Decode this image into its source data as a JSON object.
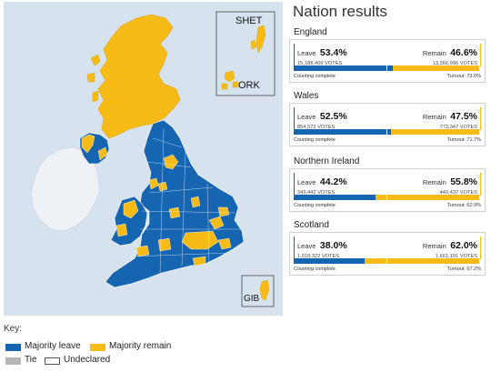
{
  "title": "Nation results",
  "map": {
    "insets": {
      "shetland_orkney": {
        "labels": [
          "SHET",
          "ORK"
        ]
      },
      "gibraltar": {
        "label": "GIB"
      }
    }
  },
  "colors": {
    "leave": "#1565b0",
    "remain": "#f6bb17",
    "tie": "#b5b5b5",
    "undeclared": "#ffffff",
    "sea": "#d6e3ee",
    "ireland": "#eef2f6"
  },
  "nations": [
    {
      "name": "England",
      "leave": {
        "label": "Leave",
        "pct": "53.4%",
        "votes": "15,188,406 VOTES",
        "share": 53.4
      },
      "remain": {
        "label": "Remain",
        "pct": "46.6%",
        "votes": "13,266,996 VOTES",
        "share": 46.6
      },
      "status": "Counting complete",
      "turnout": "Turnout: 73.0%"
    },
    {
      "name": "Wales",
      "leave": {
        "label": "Leave",
        "pct": "52.5%",
        "votes": "854,572 VOTES",
        "share": 52.5
      },
      "remain": {
        "label": "Remain",
        "pct": "47.5%",
        "votes": "772,347 VOTES",
        "share": 47.5
      },
      "status": "Counting complete",
      "turnout": "Turnout: 71.7%"
    },
    {
      "name": "Northern Ireland",
      "leave": {
        "label": "Leave",
        "pct": "44.2%",
        "votes": "349,442 VOTES",
        "share": 44.2
      },
      "remain": {
        "label": "Remain",
        "pct": "55.8%",
        "votes": "440,437 VOTES",
        "share": 55.8
      },
      "status": "Counting complete",
      "turnout": "Turnout: 62.9%"
    },
    {
      "name": "Scotland",
      "leave": {
        "label": "Leave",
        "pct": "38.0%",
        "votes": "1,018,322 VOTES",
        "share": 38.0
      },
      "remain": {
        "label": "Remain",
        "pct": "62.0%",
        "votes": "1,661,191 VOTES",
        "share": 62.0
      },
      "status": "Counting complete",
      "turnout": "Turnout: 67.2%"
    }
  ],
  "key": {
    "title": "Key:",
    "items": {
      "leave": "Majority leave",
      "remain": "Majority remain",
      "tie": "Tie",
      "undeclared": "Undeclared"
    }
  }
}
